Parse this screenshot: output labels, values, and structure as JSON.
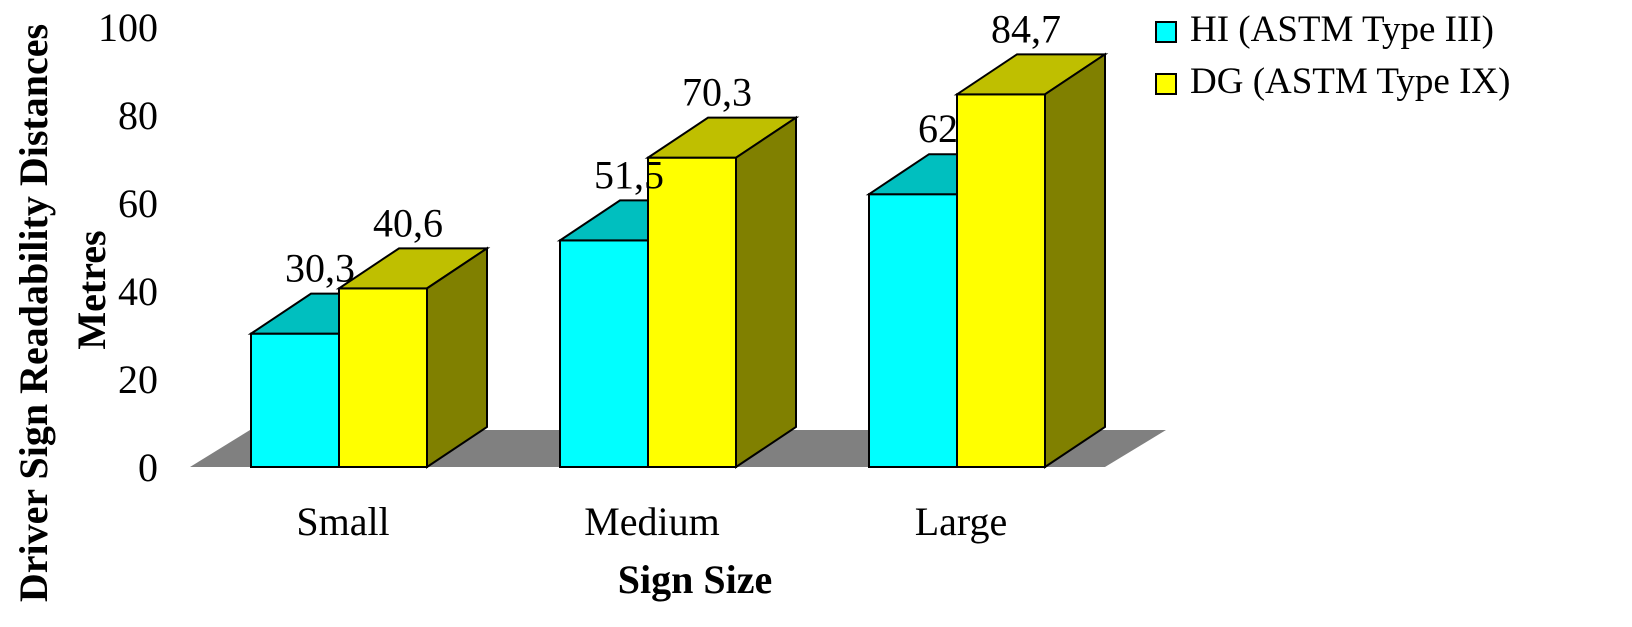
{
  "chart_data": {
    "type": "bar",
    "categories": [
      "Small",
      "Medium",
      "Large"
    ],
    "series": [
      {
        "name": "HI (ASTM Type III)",
        "values": [
          30.3,
          51.5,
          62
        ],
        "labels": [
          "30,3",
          "51,5",
          "62"
        ]
      },
      {
        "name": "DG (ASTM Type IX)",
        "values": [
          40.6,
          70.3,
          84.7
        ],
        "labels": [
          "40,6",
          "70,3",
          "84,7"
        ]
      }
    ],
    "xlabel": "Sign Size",
    "ylabel_line1": "Driver Sign Readability Distances",
    "ylabel_line2": "Metres",
    "ylim": [
      0,
      100
    ],
    "yticks": [
      "0",
      "20",
      "40",
      "60",
      "80",
      "100"
    ],
    "legend_position": "top-right",
    "style": "3d-clustered",
    "colors": {
      "series_front": [
        "#00FFFF",
        "#FFFF00"
      ],
      "series_top": [
        "#00BFBF",
        "#BFBF00"
      ],
      "series_side": [
        "#008080",
        "#808000"
      ],
      "floor": "#808080"
    }
  }
}
